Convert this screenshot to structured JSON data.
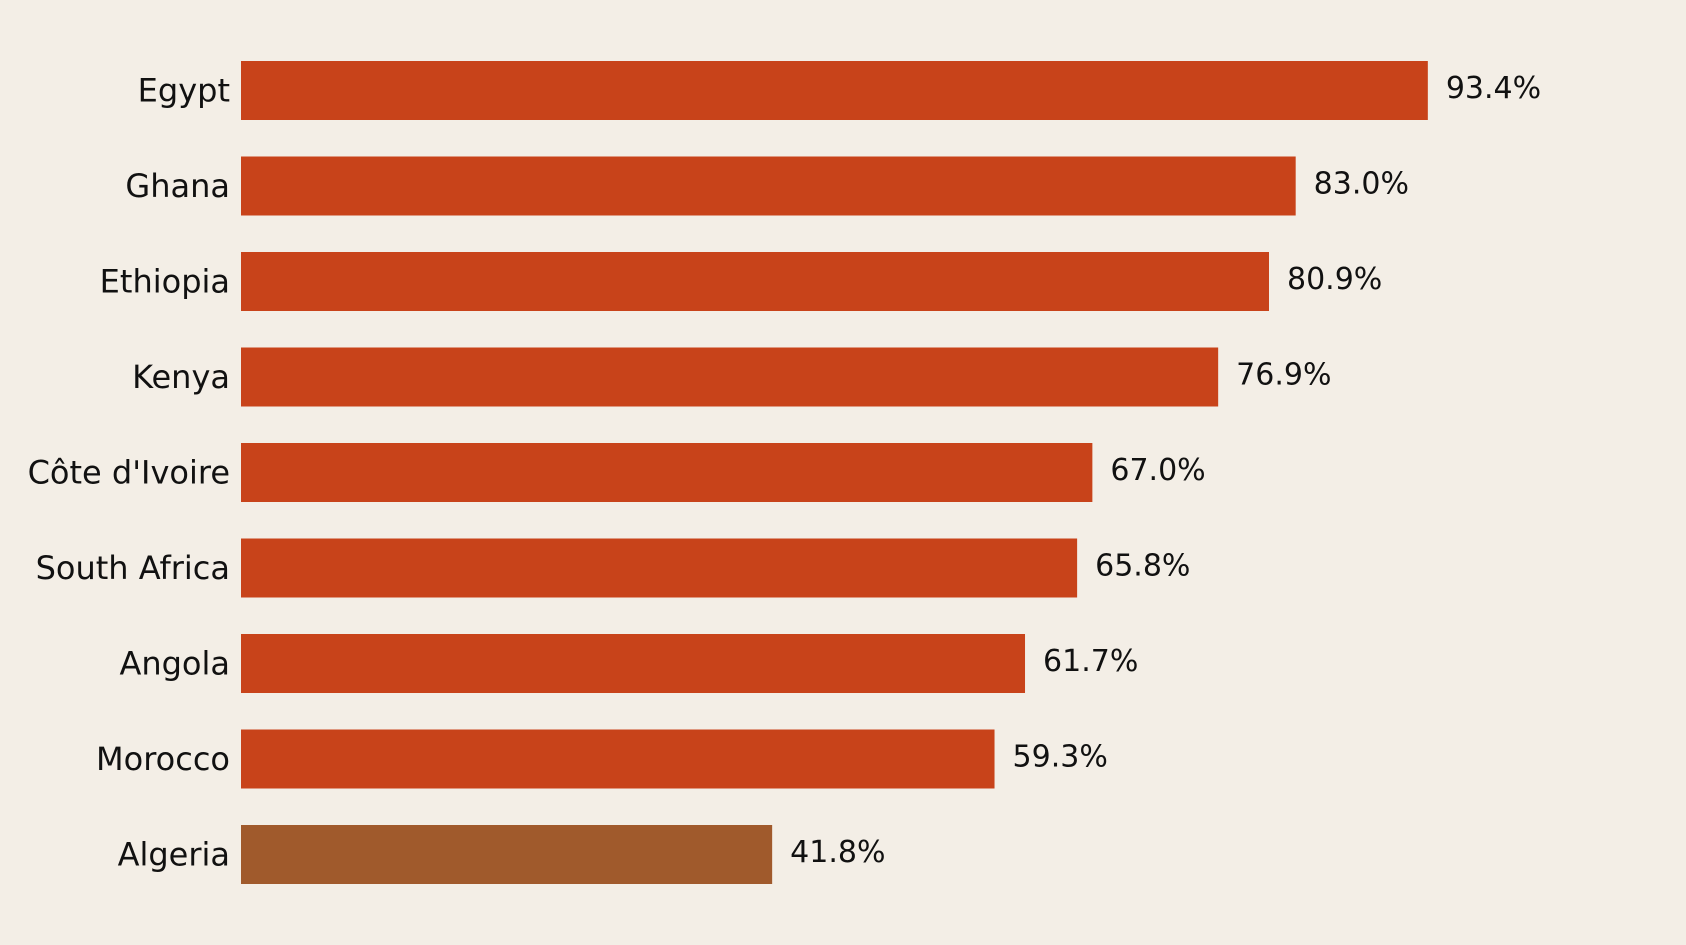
{
  "chart_data": {
    "type": "bar",
    "orientation": "horizontal",
    "categories": [
      "Egypt",
      "Ghana",
      "Ethiopia",
      "Kenya",
      "Côte d'Ivoire",
      "South Africa",
      "Angola",
      "Morocco",
      "Algeria"
    ],
    "values": [
      93.4,
      83.0,
      80.9,
      76.9,
      67.0,
      65.8,
      61.7,
      59.3,
      41.8
    ],
    "value_labels": [
      "93.4%",
      "83.0%",
      "80.9%",
      "76.9%",
      "67.0%",
      "65.8%",
      "61.7%",
      "59.3%",
      "41.8%"
    ],
    "bar_colors": [
      "#c8431a",
      "#c8431a",
      "#c8431a",
      "#c8431a",
      "#c8431a",
      "#c8431a",
      "#c8431a",
      "#c8431a",
      "#a05a2c"
    ],
    "xlim": [
      0,
      100
    ],
    "grid": false,
    "legend": "none"
  },
  "colors": {
    "background": "#f3eee6",
    "text": "#111111"
  }
}
